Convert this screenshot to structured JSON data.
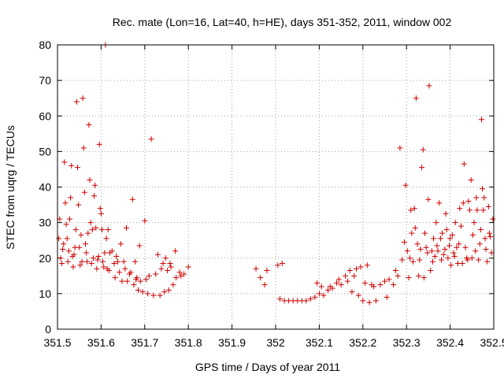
{
  "chart_data": {
    "type": "scatter",
    "title": "Rec. mate (Lon=16, Lat=40, h=HE), days 351-352, 2011, window 002",
    "xlabel": "GPS time / Days of year 2011",
    "ylabel": "STEC from uqrg / TECUs",
    "xlim": [
      351.5,
      352.5
    ],
    "ylim": [
      0,
      80
    ],
    "xticks": [
      351.5,
      351.6,
      351.7,
      351.8,
      351.9,
      352,
      352.1,
      352.2,
      352.3,
      352.4,
      352.5
    ],
    "xtick_labels": [
      "351.5",
      "351.6",
      "351.7",
      "351.8",
      "351.9",
      "352",
      "352.1",
      "352.2",
      "352.3",
      "352.4",
      "352.5"
    ],
    "yticks": [
      0,
      10,
      20,
      30,
      40,
      50,
      60,
      70,
      80
    ],
    "ytick_labels": [
      "0",
      "10",
      "20",
      "30",
      "40",
      "50",
      "60",
      "70",
      "80"
    ],
    "grid": true,
    "marker": "+",
    "color": "#cc0000",
    "series": [
      {
        "name": "STEC",
        "points": [
          [
            351.503,
            25.5
          ],
          [
            351.505,
            31
          ],
          [
            351.507,
            20
          ],
          [
            351.51,
            18.5
          ],
          [
            351.512,
            22.5
          ],
          [
            351.514,
            24
          ],
          [
            351.516,
            47
          ],
          [
            351.518,
            35.5
          ],
          [
            351.52,
            29.5
          ],
          [
            351.522,
            25.5
          ],
          [
            351.524,
            19
          ],
          [
            351.526,
            22
          ],
          [
            351.528,
            31
          ],
          [
            351.53,
            37
          ],
          [
            351.532,
            46
          ],
          [
            351.534,
            20.5
          ],
          [
            351.536,
            17.5
          ],
          [
            351.538,
            21
          ],
          [
            351.54,
            23
          ],
          [
            351.542,
            28
          ],
          [
            351.544,
            64
          ],
          [
            351.546,
            45.5
          ],
          [
            351.548,
            35
          ],
          [
            351.55,
            23
          ],
          [
            351.552,
            18
          ],
          [
            351.554,
            26.5
          ],
          [
            351.556,
            19
          ],
          [
            351.558,
            65
          ],
          [
            351.56,
            51
          ],
          [
            351.562,
            38.5
          ],
          [
            351.564,
            24
          ],
          [
            351.566,
            21.5
          ],
          [
            351.568,
            19
          ],
          [
            351.57,
            27
          ],
          [
            351.572,
            57.5
          ],
          [
            351.574,
            42
          ],
          [
            351.576,
            30
          ],
          [
            351.578,
            18.5
          ],
          [
            351.58,
            28
          ],
          [
            351.582,
            20
          ],
          [
            351.584,
            37.5
          ],
          [
            351.586,
            40.5
          ],
          [
            351.588,
            28.5
          ],
          [
            351.59,
            17
          ],
          [
            351.592,
            19.5
          ],
          [
            351.594,
            20.5
          ],
          [
            351.596,
            52
          ],
          [
            351.598,
            34
          ],
          [
            351.6,
            32.5
          ],
          [
            351.602,
            28
          ],
          [
            351.604,
            19
          ],
          [
            351.606,
            17.5
          ],
          [
            351.608,
            21.5
          ],
          [
            351.61,
            80
          ],
          [
            351.612,
            25.5
          ],
          [
            351.614,
            17
          ],
          [
            351.616,
            28
          ],
          [
            351.618,
            16.5
          ],
          [
            351.62,
            21.5
          ],
          [
            351.625,
            22
          ],
          [
            351.63,
            18.5
          ],
          [
            351.632,
            14.5
          ],
          [
            351.635,
            20.5
          ],
          [
            351.638,
            19
          ],
          [
            351.642,
            16
          ],
          [
            351.645,
            24
          ],
          [
            351.648,
            13.5
          ],
          [
            351.652,
            19
          ],
          [
            351.655,
            17
          ],
          [
            351.658,
            28.5
          ],
          [
            351.66,
            13.5
          ],
          [
            351.665,
            15.5
          ],
          [
            351.668,
            16
          ],
          [
            351.672,
            36.5
          ],
          [
            351.675,
            12.5
          ],
          [
            351.678,
            19
          ],
          [
            351.68,
            14
          ],
          [
            351.682,
            14.5
          ],
          [
            351.685,
            11
          ],
          [
            351.688,
            23.5
          ],
          [
            351.69,
            13.5
          ],
          [
            351.695,
            10.5
          ],
          [
            351.7,
            30.5
          ],
          [
            351.703,
            14
          ],
          [
            351.707,
            10
          ],
          [
            351.71,
            15
          ],
          [
            351.715,
            53.5
          ],
          [
            351.72,
            9.5
          ],
          [
            351.725,
            15.5
          ],
          [
            351.73,
            21
          ],
          [
            351.735,
            9.5
          ],
          [
            351.738,
            17
          ],
          [
            351.742,
            18.5
          ],
          [
            351.745,
            10.5
          ],
          [
            351.748,
            20
          ],
          [
            351.752,
            16.5
          ],
          [
            351.755,
            11
          ],
          [
            351.758,
            18.5
          ],
          [
            351.76,
            17.5
          ],
          [
            351.765,
            12.5
          ],
          [
            351.77,
            22
          ],
          [
            351.772,
            14.5
          ],
          [
            351.78,
            16
          ],
          [
            351.783,
            15
          ],
          [
            351.79,
            15.5
          ],
          [
            351.8,
            17.5
          ],
          [
            351.955,
            17
          ],
          [
            351.965,
            14.5
          ],
          [
            351.975,
            12.5
          ],
          [
            351.98,
            16.5
          ],
          [
            352.005,
            18
          ],
          [
            352.01,
            8.5
          ],
          [
            352.015,
            18.5
          ],
          [
            352.02,
            8
          ],
          [
            352.03,
            8
          ],
          [
            352.04,
            8
          ],
          [
            352.05,
            8
          ],
          [
            352.06,
            8
          ],
          [
            352.07,
            8
          ],
          [
            352.08,
            8.5
          ],
          [
            352.09,
            9
          ],
          [
            352.095,
            13
          ],
          [
            352.1,
            10
          ],
          [
            352.105,
            12
          ],
          [
            352.11,
            9.5
          ],
          [
            352.12,
            11
          ],
          [
            352.125,
            12
          ],
          [
            352.13,
            11.5
          ],
          [
            352.14,
            13
          ],
          [
            352.145,
            14
          ],
          [
            352.15,
            12.5
          ],
          [
            352.16,
            15
          ],
          [
            352.165,
            13.5
          ],
          [
            352.17,
            16.5
          ],
          [
            352.175,
            10.5
          ],
          [
            352.18,
            15
          ],
          [
            352.185,
            17
          ],
          [
            352.19,
            9.5
          ],
          [
            352.195,
            17.5
          ],
          [
            352.2,
            8
          ],
          [
            352.205,
            13
          ],
          [
            352.21,
            18
          ],
          [
            352.215,
            7.5
          ],
          [
            352.22,
            12.5
          ],
          [
            352.225,
            12
          ],
          [
            352.23,
            8
          ],
          [
            352.24,
            12.5
          ],
          [
            352.25,
            13.5
          ],
          [
            352.255,
            9
          ],
          [
            352.26,
            14
          ],
          [
            352.27,
            12.5
          ],
          [
            352.275,
            16.5
          ],
          [
            352.28,
            15
          ],
          [
            352.285,
            51
          ],
          [
            352.29,
            19.5
          ],
          [
            352.295,
            24.5
          ],
          [
            352.298,
            40.5
          ],
          [
            352.302,
            22
          ],
          [
            352.305,
            14.5
          ],
          [
            352.308,
            20
          ],
          [
            352.31,
            33.5
          ],
          [
            352.312,
            27
          ],
          [
            352.315,
            19
          ],
          [
            352.318,
            34
          ],
          [
            352.32,
            28.5
          ],
          [
            352.322,
            65
          ],
          [
            352.325,
            24
          ],
          [
            352.328,
            15
          ],
          [
            352.33,
            19.5
          ],
          [
            352.332,
            22.5
          ],
          [
            352.335,
            45.5
          ],
          [
            352.338,
            50.5
          ],
          [
            352.34,
            14.5
          ],
          [
            352.342,
            27
          ],
          [
            352.345,
            23
          ],
          [
            352.348,
            21.5
          ],
          [
            352.35,
            36.5
          ],
          [
            352.352,
            68.5
          ],
          [
            352.355,
            16.5
          ],
          [
            352.358,
            22
          ],
          [
            352.36,
            19
          ],
          [
            352.362,
            25.5
          ],
          [
            352.365,
            20.5
          ],
          [
            352.368,
            30
          ],
          [
            352.37,
            23.5
          ],
          [
            352.372,
            22
          ],
          [
            352.375,
            35.5
          ],
          [
            352.378,
            25.5
          ],
          [
            352.38,
            19.5
          ],
          [
            352.382,
            27
          ],
          [
            352.385,
            21
          ],
          [
            352.388,
            22.5
          ],
          [
            352.39,
            32.5
          ],
          [
            352.392,
            28
          ],
          [
            352.395,
            20
          ],
          [
            352.398,
            23.5
          ],
          [
            352.4,
            25.5
          ],
          [
            352.402,
            18
          ],
          [
            352.405,
            26.5
          ],
          [
            352.408,
            21.5
          ],
          [
            352.41,
            20.5
          ],
          [
            352.412,
            30
          ],
          [
            352.415,
            23
          ],
          [
            352.418,
            18.5
          ],
          [
            352.42,
            24
          ],
          [
            352.422,
            34
          ],
          [
            352.425,
            29
          ],
          [
            352.428,
            18.5
          ],
          [
            352.43,
            35.5
          ],
          [
            352.432,
            46.5
          ],
          [
            352.435,
            23
          ],
          [
            352.438,
            20
          ],
          [
            352.44,
            19.5
          ],
          [
            352.442,
            36
          ],
          [
            352.445,
            33.5
          ],
          [
            352.448,
            42
          ],
          [
            352.45,
            20
          ],
          [
            352.452,
            26.5
          ],
          [
            352.455,
            30
          ],
          [
            352.458,
            22
          ],
          [
            352.46,
            37
          ],
          [
            352.462,
            33.5
          ],
          [
            352.465,
            19.5
          ],
          [
            352.468,
            24
          ],
          [
            352.47,
            28
          ],
          [
            352.472,
            59
          ],
          [
            352.474,
            39.5
          ],
          [
            352.476,
            33.5
          ],
          [
            352.478,
            37
          ],
          [
            352.48,
            25.5
          ],
          [
            352.482,
            22.5
          ],
          [
            352.485,
            19
          ],
          [
            352.488,
            34.5
          ],
          [
            352.49,
            27
          ],
          [
            352.492,
            26
          ],
          [
            352.495,
            21.5
          ],
          [
            352.498,
            31
          ]
        ]
      }
    ]
  }
}
